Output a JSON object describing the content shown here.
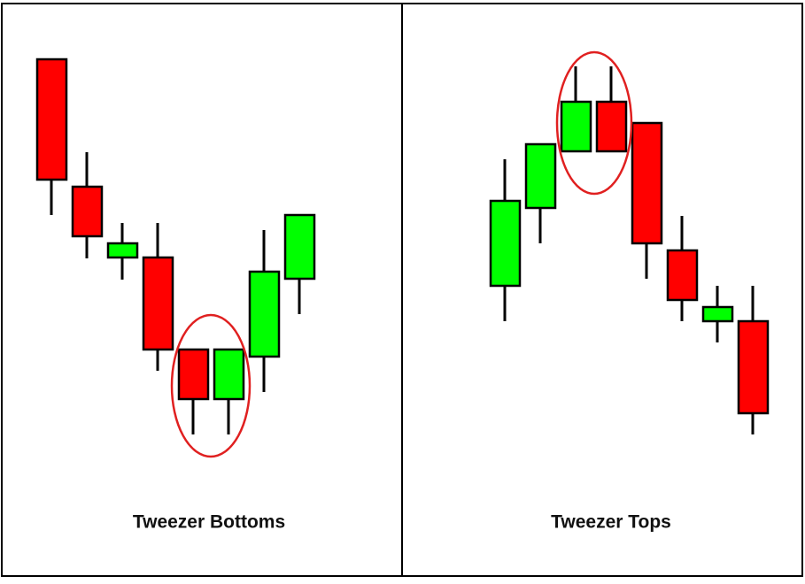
{
  "panels": [
    {
      "label": "Tweezer Bottoms"
    },
    {
      "label": "Tweezer Tops"
    }
  ]
}
